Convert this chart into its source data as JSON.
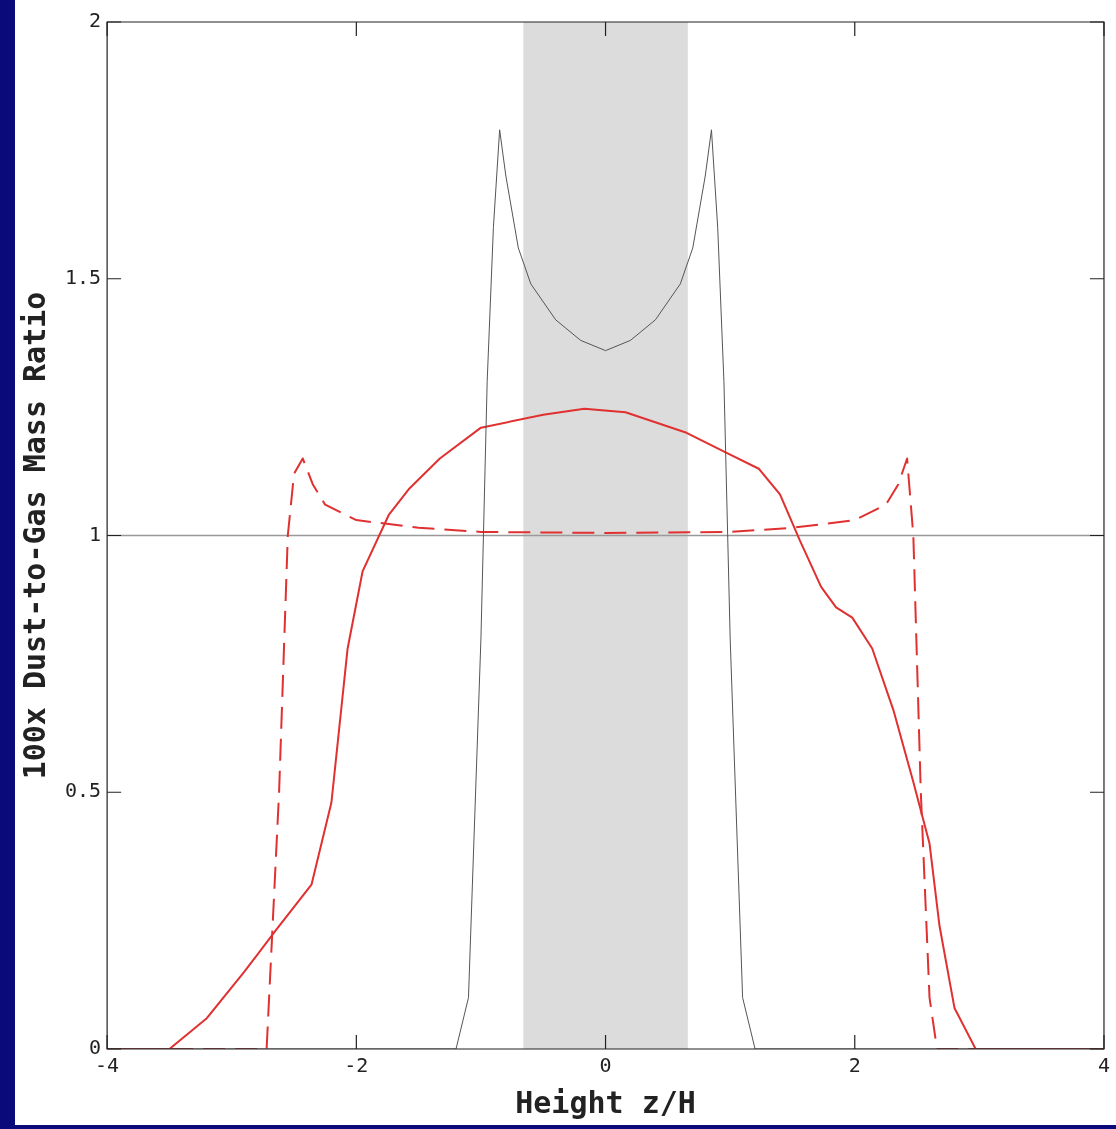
{
  "chart_data": {
    "type": "line",
    "xlabel": "Height z/H",
    "ylabel": "100x Dust-to-Gas Mass Ratio",
    "xlim": [
      -4,
      4
    ],
    "ylim": [
      0,
      2
    ],
    "xticks": [
      -4,
      -2,
      0,
      2,
      4
    ],
    "yticks": [
      0,
      0.5,
      1,
      1.5,
      2
    ],
    "grid": false,
    "legend": false,
    "marker": "none",
    "bands": [
      {
        "axis": "x",
        "from": -0.66,
        "to": 0.66,
        "color": "#dcdcdc"
      }
    ],
    "ref_lines": [
      {
        "axis": "y",
        "value": 1,
        "color": "#999999"
      }
    ],
    "series": [
      {
        "color": "#555555",
        "line_style": "solid",
        "x": [
          -4,
          -1.2,
          -1.1,
          -1.0,
          -0.95,
          -0.9,
          -0.85,
          -0.8,
          -0.7,
          -0.6,
          -0.4,
          -0.2,
          0,
          0.2,
          0.4,
          0.6,
          0.7,
          0.8,
          0.85,
          0.9,
          0.95,
          1.0,
          1.1,
          1.2,
          4
        ],
        "values": [
          0,
          0,
          0.1,
          0.8,
          1.3,
          1.6,
          1.79,
          1.7,
          1.56,
          1.49,
          1.42,
          1.38,
          1.36,
          1.38,
          1.42,
          1.49,
          1.56,
          1.7,
          1.79,
          1.6,
          1.3,
          0.8,
          0.1,
          0,
          0
        ]
      },
      {
        "color": "#e03030",
        "line_style": "solid",
        "x": [
          -4,
          -3.5,
          -3.2,
          -2.9,
          -2.65,
          -2.36,
          -2.2,
          -2.07,
          -1.95,
          -1.74,
          -1.58,
          -1.33,
          -1.0,
          -0.5,
          -0.17,
          0.16,
          0.65,
          0.98,
          1.23,
          1.4,
          1.56,
          1.73,
          1.85,
          1.98,
          2.14,
          2.31,
          2.47,
          2.6,
          2.68,
          2.8,
          2.97,
          4
        ],
        "values": [
          0,
          0,
          0.06,
          0.15,
          0.23,
          0.32,
          0.48,
          0.78,
          0.93,
          1.04,
          1.09,
          1.15,
          1.21,
          1.235,
          1.247,
          1.24,
          1.2,
          1.16,
          1.13,
          1.08,
          0.99,
          0.9,
          0.86,
          0.84,
          0.78,
          0.66,
          0.52,
          0.4,
          0.24,
          0.08,
          0,
          0
        ]
      },
      {
        "color": "#e03030",
        "line_style": "dashed",
        "x": [
          -4,
          -2.72,
          -2.62,
          -2.55,
          -2.5,
          -2.43,
          -2.35,
          -2.25,
          -2.0,
          -1.5,
          -1.0,
          0,
          1.0,
          1.5,
          2.0,
          2.25,
          2.35,
          2.42,
          2.47,
          2.53,
          2.6,
          2.66,
          4
        ],
        "values": [
          0,
          0,
          0.5,
          1.0,
          1.12,
          1.15,
          1.1,
          1.06,
          1.03,
          1.015,
          1.007,
          1.005,
          1.007,
          1.015,
          1.03,
          1.06,
          1.1,
          1.15,
          1.0,
          0.5,
          0.1,
          0,
          0
        ]
      }
    ]
  }
}
